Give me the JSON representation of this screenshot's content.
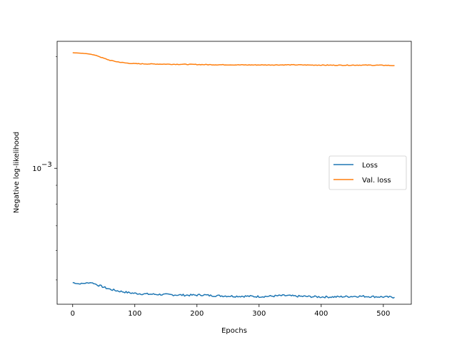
{
  "chart_data": {
    "type": "line",
    "title": "",
    "xlabel": "Epochs",
    "ylabel": "Negative log-likelihood",
    "xlim": [
      -25,
      545
    ],
    "ylim": [
      0.00043,
      0.0022
    ],
    "yscale": "log",
    "x_ticks": [
      0,
      100,
      200,
      300,
      400,
      500
    ],
    "x_tick_labels": [
      "0",
      "100",
      "200",
      "300",
      "400",
      "500"
    ],
    "y_major_ticks": [
      0.001
    ],
    "y_major_tick_labels": [
      "10",
      "−3"
    ],
    "y_minor_ticks": [
      0.0005,
      0.0006,
      0.0007,
      0.0008,
      0.0009,
      0.002
    ],
    "grid": false,
    "legend_position": "center-right",
    "series": [
      {
        "name": "Loss",
        "color": "#1f77b4",
        "x": [
          0,
          10,
          20,
          30,
          40,
          50,
          60,
          70,
          80,
          90,
          100,
          120,
          140,
          160,
          180,
          200,
          210,
          220,
          240,
          260,
          280,
          300,
          320,
          340,
          360,
          380,
          400,
          420,
          440,
          460,
          480,
          500,
          518
        ],
        "y": [
          0.000492,
          0.000488,
          0.00049,
          0.000492,
          0.000485,
          0.000478,
          0.000472,
          0.000468,
          0.000465,
          0.000462,
          0.00046,
          0.000458,
          0.000457,
          0.000456,
          0.000455,
          0.000455,
          0.000456,
          0.000454,
          0.000453,
          0.000452,
          0.000452,
          0.000451,
          0.000452,
          0.000454,
          0.000452,
          0.000451,
          0.00045,
          0.00045,
          0.000451,
          0.000452,
          0.000451,
          0.00045,
          0.000449
        ]
      },
      {
        "name": "Val. loss",
        "color": "#ff7f0e",
        "x": [
          0,
          10,
          20,
          30,
          40,
          50,
          60,
          70,
          80,
          90,
          100,
          120,
          140,
          160,
          180,
          200,
          220,
          240,
          260,
          280,
          300,
          320,
          340,
          360,
          380,
          400,
          420,
          440,
          460,
          480,
          500,
          518
        ],
        "y": [
          0.00205,
          0.002045,
          0.00204,
          0.00203,
          0.00201,
          0.00198,
          0.001955,
          0.00194,
          0.001928,
          0.00192,
          0.001915,
          0.001912,
          0.00191,
          0.001908,
          0.001907,
          0.001905,
          0.001903,
          0.001902,
          0.001901,
          0.0019,
          0.0019,
          0.0019,
          0.001901,
          0.001901,
          0.001899,
          0.001898,
          0.001897,
          0.001897,
          0.001898,
          0.001897,
          0.001896,
          0.001893
        ]
      }
    ]
  }
}
